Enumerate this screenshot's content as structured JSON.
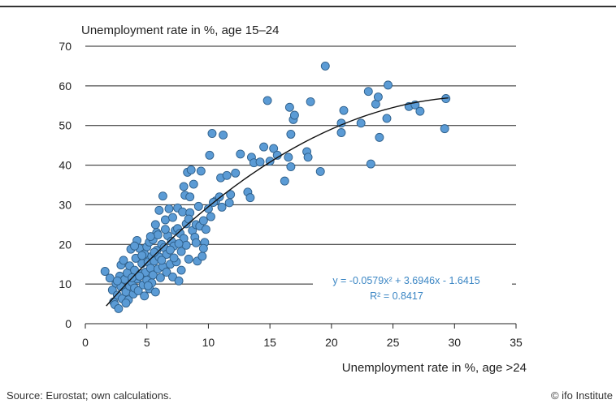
{
  "chart_data": {
    "type": "scatter",
    "ylabel": "Unemployment rate in %, age 15–24",
    "xlabel": "Unemployment rate in %, age >24",
    "xlim": [
      0,
      35
    ],
    "ylim": [
      0,
      70
    ],
    "xticks": [
      "0",
      "5",
      "10",
      "15",
      "20",
      "25",
      "30",
      "35"
    ],
    "yticks": [
      "0",
      "10",
      "20",
      "30",
      "40",
      "50",
      "60",
      "70"
    ],
    "grid": "horizontal",
    "point_color": "#5b9bd5",
    "point_edge_color": "#2e5f8a",
    "trendline": {
      "type": "polynomial",
      "coefficients": [
        -0.0579,
        3.6946,
        -1.6415
      ],
      "x_range": [
        1.7,
        29.5
      ],
      "equation_label": "y = -0.0579x² + 3.6946x - 1.6415",
      "r2_label": "R² = 0.8417"
    },
    "points": [
      [
        1.6,
        13.2
      ],
      [
        2.0,
        11.5
      ],
      [
        2.2,
        8.5
      ],
      [
        2.3,
        5.5
      ],
      [
        2.4,
        4.8
      ],
      [
        2.5,
        10.2
      ],
      [
        2.6,
        7.2
      ],
      [
        2.7,
        3.8
      ],
      [
        2.8,
        12.0
      ],
      [
        2.9,
        14.8
      ],
      [
        2.9,
        9.3
      ],
      [
        3.0,
        6.3
      ],
      [
        3.1,
        16.0
      ],
      [
        3.2,
        11.2
      ],
      [
        3.3,
        8.0
      ],
      [
        3.4,
        12.8
      ],
      [
        3.5,
        6.0
      ],
      [
        3.6,
        9.5
      ],
      [
        3.6,
        14.6
      ],
      [
        3.7,
        18.8
      ],
      [
        3.8,
        10.5
      ],
      [
        3.9,
        7.5
      ],
      [
        4.0,
        13.5
      ],
      [
        4.0,
        9.0
      ],
      [
        4.1,
        16.5
      ],
      [
        4.2,
        11.3
      ],
      [
        4.2,
        21.0
      ],
      [
        4.3,
        8.3
      ],
      [
        4.4,
        19.0
      ],
      [
        4.5,
        12.6
      ],
      [
        4.6,
        15.2
      ],
      [
        4.7,
        9.8
      ],
      [
        4.8,
        17.6
      ],
      [
        4.8,
        7.0
      ],
      [
        4.9,
        13.0
      ],
      [
        5.0,
        19.4
      ],
      [
        5.0,
        11.0
      ],
      [
        5.1,
        15.6
      ],
      [
        5.2,
        20.6
      ],
      [
        5.2,
        8.8
      ],
      [
        5.3,
        14.0
      ],
      [
        5.4,
        17.0
      ],
      [
        5.4,
        10.3
      ],
      [
        5.5,
        21.2
      ],
      [
        5.5,
        12.3
      ],
      [
        5.6,
        15.8
      ],
      [
        5.7,
        25.0
      ],
      [
        5.7,
        8.0
      ],
      [
        5.8,
        18.5
      ],
      [
        5.8,
        23.0
      ],
      [
        5.9,
        13.8
      ],
      [
        6.0,
        28.6
      ],
      [
        6.0,
        16.8
      ],
      [
        6.1,
        11.6
      ],
      [
        6.2,
        20.0
      ],
      [
        6.3,
        32.2
      ],
      [
        6.3,
        14.4
      ],
      [
        6.4,
        19.2
      ],
      [
        6.5,
        26.2
      ],
      [
        6.6,
        17.5
      ],
      [
        6.6,
        13.0
      ],
      [
        6.7,
        22.2
      ],
      [
        6.8,
        29.0
      ],
      [
        6.9,
        15.0
      ],
      [
        7.0,
        20.8
      ],
      [
        7.1,
        26.8
      ],
      [
        7.1,
        11.8
      ],
      [
        7.2,
        19.6
      ],
      [
        7.3,
        23.5
      ],
      [
        7.4,
        15.6
      ],
      [
        7.5,
        29.2
      ],
      [
        7.5,
        24.0
      ],
      [
        7.6,
        10.8
      ],
      [
        7.7,
        22.8
      ],
      [
        7.8,
        18.2
      ],
      [
        7.8,
        13.5
      ],
      [
        7.9,
        28.2
      ],
      [
        8.0,
        34.6
      ],
      [
        8.0,
        21.5
      ],
      [
        8.1,
        32.4
      ],
      [
        8.2,
        25.2
      ],
      [
        8.2,
        19.8
      ],
      [
        8.3,
        38.2
      ],
      [
        8.4,
        16.3
      ],
      [
        8.5,
        32.0
      ],
      [
        8.5,
        28.0
      ],
      [
        8.6,
        38.8
      ],
      [
        8.7,
        23.5
      ],
      [
        8.8,
        35.2
      ],
      [
        8.9,
        21.8
      ],
      [
        9.0,
        25.0
      ],
      [
        9.1,
        15.8
      ],
      [
        9.2,
        29.6
      ],
      [
        9.3,
        24.6
      ],
      [
        9.4,
        38.5
      ],
      [
        9.5,
        17.0
      ],
      [
        9.6,
        26.0
      ],
      [
        9.7,
        20.5
      ],
      [
        9.8,
        23.8
      ],
      [
        10.0,
        29.0
      ],
      [
        10.1,
        42.5
      ],
      [
        10.2,
        27.0
      ],
      [
        10.3,
        48.0
      ],
      [
        10.6,
        31.0
      ],
      [
        10.9,
        32.0
      ],
      [
        11.0,
        36.8
      ],
      [
        11.1,
        29.4
      ],
      [
        11.2,
        47.6
      ],
      [
        11.5,
        37.4
      ],
      [
        11.7,
        30.5
      ],
      [
        11.8,
        32.6
      ],
      [
        12.2,
        38.0
      ],
      [
        12.6,
        42.8
      ],
      [
        13.2,
        33.2
      ],
      [
        13.4,
        31.8
      ],
      [
        13.5,
        42.0
      ],
      [
        13.7,
        40.6
      ],
      [
        14.2,
        40.8
      ],
      [
        14.5,
        44.6
      ],
      [
        14.8,
        56.3
      ],
      [
        15.0,
        41.0
      ],
      [
        15.3,
        44.2
      ],
      [
        15.6,
        42.5
      ],
      [
        16.2,
        36.0
      ],
      [
        16.5,
        42.0
      ],
      [
        16.6,
        54.6
      ],
      [
        16.7,
        39.6
      ],
      [
        16.9,
        51.5
      ],
      [
        17.0,
        52.6
      ],
      [
        16.7,
        47.8
      ],
      [
        18.0,
        43.4
      ],
      [
        18.1,
        42.0
      ],
      [
        18.3,
        56.0
      ],
      [
        19.1,
        38.4
      ],
      [
        19.5,
        65.0
      ],
      [
        20.8,
        48.2
      ],
      [
        20.8,
        50.6
      ],
      [
        21.0,
        53.8
      ],
      [
        22.4,
        50.6
      ],
      [
        23.0,
        58.6
      ],
      [
        23.2,
        40.3
      ],
      [
        23.6,
        55.4
      ],
      [
        23.8,
        57.2
      ],
      [
        23.9,
        47.0
      ],
      [
        24.5,
        51.8
      ],
      [
        24.6,
        60.2
      ],
      [
        26.3,
        54.8
      ],
      [
        26.8,
        55.2
      ],
      [
        27.2,
        53.6
      ],
      [
        29.2,
        49.2
      ],
      [
        29.3,
        56.8
      ],
      [
        2.6,
        10.8
      ],
      [
        3.3,
        5.2
      ],
      [
        3.8,
        11.6
      ],
      [
        4.4,
        12.0
      ],
      [
        5.1,
        9.6
      ],
      [
        5.6,
        18.0
      ],
      [
        6.2,
        16.0
      ],
      [
        6.9,
        18.6
      ],
      [
        7.6,
        20.2
      ],
      [
        8.4,
        26.4
      ],
      [
        9.0,
        20.4
      ],
      [
        9.6,
        19.0
      ],
      [
        10.4,
        30.6
      ],
      [
        4.0,
        19.6
      ],
      [
        4.6,
        17.2
      ],
      [
        5.9,
        22.4
      ],
      [
        6.5,
        23.8
      ],
      [
        7.2,
        16.6
      ],
      [
        5.3,
        22.0
      ]
    ]
  },
  "footer": {
    "source": "Source: Eurostat; own calculations.",
    "credit": "© ifo Institute"
  }
}
